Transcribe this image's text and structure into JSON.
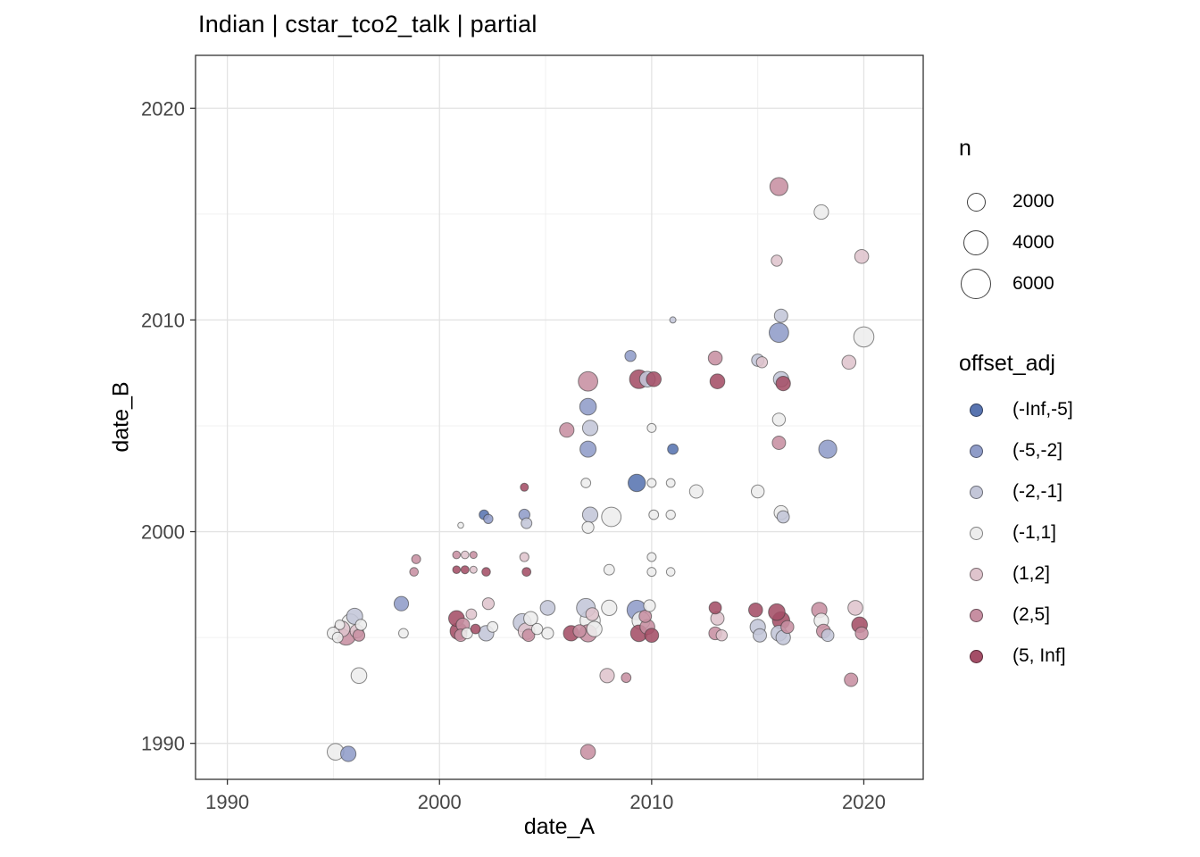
{
  "chart": {
    "title": "Indian | cstar_tco2_talk | partial",
    "x_label": "date_A",
    "y_label": "date_B"
  },
  "chart_data": {
    "type": "scatter",
    "title": "Indian | cstar_tco2_talk | partial",
    "xlabel": "date_A",
    "ylabel": "date_B",
    "xlim": [
      1988.5,
      2022.8
    ],
    "ylim": [
      1988.3,
      2022.5
    ],
    "x_ticks": [
      1990,
      2000,
      2010,
      2020
    ],
    "y_ticks": [
      1990,
      2000,
      2010,
      2020
    ],
    "x_minor": [
      1995,
      2005,
      2015
    ],
    "y_minor": [
      1995,
      2005,
      2015
    ],
    "grid": true,
    "legend_position": "right",
    "size_legend": {
      "title": "n",
      "breaks": [
        2000,
        4000,
        6000
      ]
    },
    "color_legend": {
      "title": "offset_adj",
      "bins": [
        {
          "label": "(-Inf,-5]",
          "color": "#5874b0"
        },
        {
          "label": "(-5,-2]",
          "color": "#8f9cc8"
        },
        {
          "label": "(-2,-1]",
          "color": "#c3c6d8"
        },
        {
          "label": "(-1,1]",
          "color": "#ededed"
        },
        {
          "label": "(1,2]",
          "color": "#dfc4cd"
        },
        {
          "label": "(2,5]",
          "color": "#c78fa2"
        },
        {
          "label": "(5, Inf]",
          "color": "#a44e67"
        }
      ]
    },
    "points_format": [
      "x",
      "y",
      "n",
      "bin_index"
    ],
    "points": [
      [
        1995.0,
        1995.2,
        900,
        3
      ],
      [
        1995.2,
        1995.0,
        600,
        3
      ],
      [
        1995.4,
        1995.4,
        1600,
        4
      ],
      [
        1995.6,
        1995.1,
        2600,
        5
      ],
      [
        1995.8,
        1995.7,
        2000,
        3
      ],
      [
        1996.0,
        1996.0,
        1700,
        2
      ],
      [
        1996.1,
        1995.3,
        1100,
        4
      ],
      [
        1996.2,
        1995.1,
        800,
        5
      ],
      [
        1996.3,
        1995.6,
        700,
        3
      ],
      [
        1995.3,
        1995.6,
        500,
        3
      ],
      [
        1995.1,
        1989.6,
        1800,
        3
      ],
      [
        1995.7,
        1989.5,
        1500,
        1
      ],
      [
        1996.2,
        1993.2,
        1600,
        3
      ],
      [
        1998.2,
        1996.6,
        1300,
        1
      ],
      [
        1998.3,
        1995.2,
        500,
        3
      ],
      [
        1998.9,
        1998.7,
        400,
        5
      ],
      [
        1998.8,
        1998.1,
        350,
        5
      ],
      [
        2000.8,
        1998.9,
        260,
        5
      ],
      [
        2001.2,
        1998.9,
        260,
        4
      ],
      [
        2001.6,
        1998.9,
        220,
        5
      ],
      [
        2000.8,
        1998.2,
        260,
        6
      ],
      [
        2001.2,
        1998.2,
        300,
        6
      ],
      [
        2001.6,
        1998.2,
        220,
        4
      ],
      [
        2001.0,
        2000.3,
        120,
        3
      ],
      [
        2002.1,
        2000.8,
        500,
        0
      ],
      [
        2002.3,
        2000.6,
        450,
        1
      ],
      [
        2000.8,
        1995.9,
        1600,
        6
      ],
      [
        2000.9,
        1995.3,
        1900,
        6
      ],
      [
        2001.1,
        1995.6,
        1100,
        5
      ],
      [
        2001.0,
        1995.1,
        900,
        5
      ],
      [
        2001.3,
        1995.2,
        700,
        3
      ],
      [
        2001.5,
        1996.1,
        600,
        4
      ],
      [
        2001.7,
        1995.4,
        500,
        6
      ],
      [
        2002.2,
        1998.1,
        350,
        6
      ],
      [
        2002.3,
        1996.6,
        800,
        4
      ],
      [
        2002.2,
        1995.2,
        1500,
        2
      ],
      [
        2002.5,
        1995.5,
        600,
        3
      ],
      [
        2004.0,
        2002.1,
        300,
        6
      ],
      [
        2004.0,
        2000.8,
        700,
        1
      ],
      [
        2004.1,
        2000.4,
        650,
        2
      ],
      [
        2004.0,
        1998.8,
        420,
        4
      ],
      [
        2004.1,
        1998.1,
        380,
        6
      ],
      [
        2003.9,
        1995.7,
        2200,
        2
      ],
      [
        2004.1,
        1995.3,
        1800,
        4
      ],
      [
        2004.3,
        1995.9,
        1200,
        3
      ],
      [
        2004.2,
        1995.1,
        900,
        5
      ],
      [
        2004.6,
        1995.4,
        700,
        3
      ],
      [
        2005.1,
        1996.4,
        1400,
        2
      ],
      [
        2005.1,
        1995.2,
        800,
        3
      ],
      [
        2006.0,
        2004.8,
        1300,
        5
      ],
      [
        2006.2,
        1995.2,
        1500,
        6
      ],
      [
        2006.6,
        1995.3,
        1000,
        5
      ],
      [
        2007.0,
        2007.1,
        2600,
        5
      ],
      [
        2007.0,
        2005.9,
        1800,
        1
      ],
      [
        2007.1,
        2004.9,
        1500,
        2
      ],
      [
        2007.0,
        2003.9,
        1700,
        1
      ],
      [
        2006.9,
        2002.3,
        500,
        3
      ],
      [
        2007.1,
        2000.8,
        1500,
        2
      ],
      [
        2007.0,
        2000.2,
        800,
        3
      ],
      [
        2006.9,
        1996.4,
        2400,
        2
      ],
      [
        2007.1,
        1995.8,
        2800,
        3
      ],
      [
        2007.0,
        1995.2,
        2000,
        5
      ],
      [
        2007.3,
        1995.4,
        1500,
        3
      ],
      [
        2007.2,
        1996.1,
        1000,
        4
      ],
      [
        2007.0,
        1989.6,
        1400,
        5
      ],
      [
        2008.0,
        1998.2,
        600,
        3
      ],
      [
        2008.1,
        2000.7,
        2600,
        3
      ],
      [
        2008.0,
        1996.4,
        1500,
        3
      ],
      [
        2007.9,
        1993.2,
        1300,
        4
      ],
      [
        2008.8,
        1993.1,
        500,
        5
      ],
      [
        2009.0,
        2008.3,
        700,
        1
      ],
      [
        2009.3,
        2002.3,
        2000,
        0
      ],
      [
        2009.4,
        2007.2,
        2400,
        6
      ],
      [
        2009.8,
        2007.2,
        1600,
        2
      ],
      [
        2010.1,
        2007.2,
        1400,
        6
      ],
      [
        2009.3,
        1996.3,
        2600,
        1
      ],
      [
        2009.5,
        1995.8,
        2200,
        3
      ],
      [
        2009.4,
        1995.2,
        1800,
        6
      ],
      [
        2009.8,
        1995.5,
        1400,
        5
      ],
      [
        2010.0,
        1995.1,
        1200,
        6
      ],
      [
        2009.7,
        1996.0,
        900,
        5
      ],
      [
        2009.9,
        1996.5,
        800,
        3
      ],
      [
        2010.0,
        2004.9,
        400,
        3
      ],
      [
        2011.0,
        2003.9,
        600,
        0
      ],
      [
        2010.0,
        2002.3,
        400,
        3
      ],
      [
        2010.9,
        2002.3,
        380,
        3
      ],
      [
        2010.1,
        2000.8,
        500,
        3
      ],
      [
        2010.9,
        2000.8,
        450,
        3
      ],
      [
        2010.0,
        1998.8,
        400,
        3
      ],
      [
        2010.0,
        1998.1,
        400,
        3
      ],
      [
        2010.9,
        1998.1,
        350,
        3
      ],
      [
        2011.0,
        2010.0,
        150,
        2
      ],
      [
        2012.1,
        2001.9,
        1100,
        3
      ],
      [
        2013.0,
        2008.2,
        1200,
        5
      ],
      [
        2013.1,
        2007.1,
        1400,
        6
      ],
      [
        2013.0,
        1996.4,
        900,
        6
      ],
      [
        2013.1,
        1995.9,
        1100,
        4
      ],
      [
        2013.0,
        1995.2,
        1000,
        5
      ],
      [
        2013.3,
        1995.1,
        700,
        4
      ],
      [
        2015.0,
        2008.1,
        900,
        2
      ],
      [
        2015.2,
        2008.0,
        700,
        4
      ],
      [
        2015.0,
        2001.9,
        1000,
        3
      ],
      [
        2014.9,
        1996.3,
        1200,
        6
      ],
      [
        2015.0,
        1995.5,
        1500,
        2
      ],
      [
        2015.1,
        1995.1,
        1100,
        2
      ],
      [
        2016.0,
        2016.3,
        2200,
        5
      ],
      [
        2015.9,
        2012.8,
        700,
        4
      ],
      [
        2016.1,
        2010.2,
        1100,
        2
      ],
      [
        2016.0,
        2009.4,
        2600,
        1
      ],
      [
        2016.1,
        2007.2,
        1500,
        2
      ],
      [
        2016.2,
        2007.0,
        1300,
        6
      ],
      [
        2016.0,
        2005.3,
        1000,
        3
      ],
      [
        2016.0,
        2004.2,
        1100,
        5
      ],
      [
        2016.1,
        2000.9,
        1200,
        3
      ],
      [
        2016.2,
        2000.7,
        900,
        2
      ],
      [
        2015.9,
        1996.2,
        1800,
        6
      ],
      [
        2016.1,
        1995.8,
        2000,
        6
      ],
      [
        2016.0,
        1995.2,
        1600,
        2
      ],
      [
        2016.2,
        1995.0,
        1300,
        2
      ],
      [
        2016.4,
        1995.5,
        1000,
        5
      ],
      [
        2018.0,
        2015.1,
        1300,
        3
      ],
      [
        2018.3,
        2003.9,
        2200,
        1
      ],
      [
        2017.9,
        1996.3,
        1500,
        5
      ],
      [
        2018.0,
        1995.8,
        1300,
        3
      ],
      [
        2018.1,
        1995.3,
        1200,
        5
      ],
      [
        2018.3,
        1995.1,
        900,
        2
      ],
      [
        2019.3,
        2008.0,
        1200,
        4
      ],
      [
        2019.4,
        1993.0,
        1100,
        5
      ],
      [
        2019.9,
        2013.0,
        1200,
        4
      ],
      [
        2020.0,
        2009.2,
        2800,
        3
      ],
      [
        2019.6,
        1996.4,
        1400,
        4
      ],
      [
        2019.8,
        1995.6,
        1600,
        6
      ],
      [
        2019.9,
        1995.2,
        1000,
        5
      ]
    ]
  }
}
